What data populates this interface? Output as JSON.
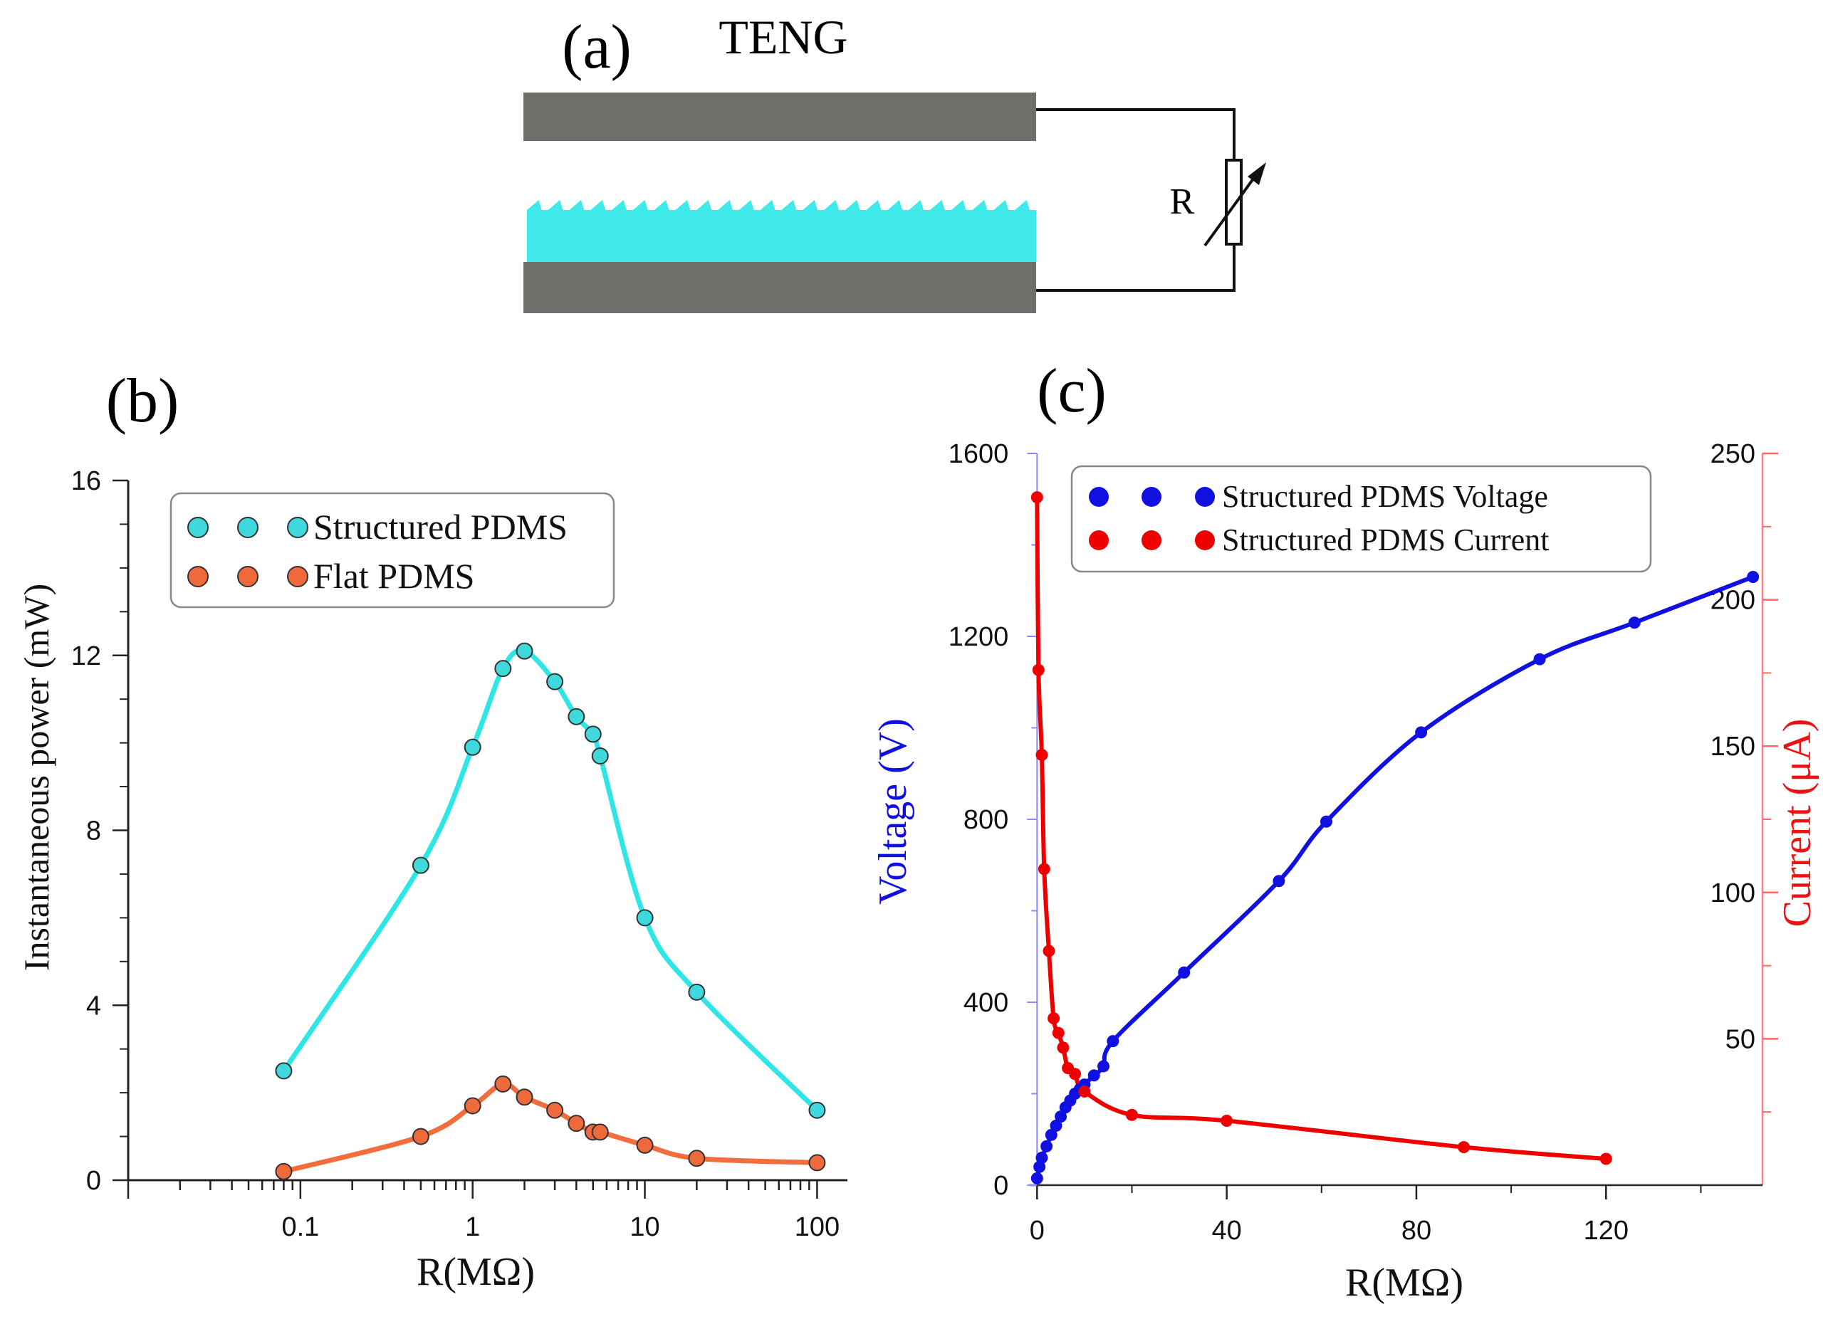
{
  "panel_a": {
    "label": "(a)",
    "title": "TENG",
    "resistor_label": "R",
    "colors": {
      "electrode": "#6f6e6b",
      "pdms": "#40eaea",
      "wire": "#111111"
    }
  },
  "chart_data": [
    {
      "id": "b",
      "panel_label": "(b)",
      "type": "line",
      "xscale": "log",
      "xlabel": "R(MΩ)",
      "ylabel": "Instantaneous power (mW)",
      "xlim": [
        0.01,
        150
      ],
      "ylim": [
        0,
        16
      ],
      "xticks": [
        0.1,
        1,
        10,
        100
      ],
      "xtick_labels": [
        "0.1",
        "1",
        "10",
        "100"
      ],
      "yticks": [
        0,
        4,
        8,
        12,
        16
      ],
      "ytick_labels": [
        "0",
        "4",
        "8",
        "12",
        "16"
      ],
      "legend_position": "top-left",
      "series": [
        {
          "name": "Structured PDMS",
          "color": "#2ee6e6",
          "marker_fill": "#3fd8dc",
          "x": [
            0.08,
            0.5,
            1.0,
            1.5,
            2.0,
            3.0,
            4.0,
            5.0,
            5.5,
            10,
            20,
            100
          ],
          "y": [
            2.5,
            7.2,
            9.9,
            11.7,
            12.1,
            11.4,
            10.6,
            10.2,
            9.7,
            6.0,
            4.3,
            1.6
          ]
        },
        {
          "name": "Flat PDMS",
          "color": "#f26d3d",
          "marker_fill": "#ee6a3c",
          "x": [
            0.08,
            0.5,
            1.0,
            1.5,
            2.0,
            3.0,
            4.0,
            5.0,
            5.5,
            10,
            20,
            100
          ],
          "y": [
            0.2,
            1.0,
            1.7,
            2.2,
            1.9,
            1.6,
            1.3,
            1.1,
            1.1,
            0.8,
            0.5,
            0.4
          ]
        }
      ]
    },
    {
      "id": "c",
      "panel_label": "(c)",
      "type": "line",
      "xscale": "linear",
      "xlabel": "R(MΩ)",
      "ylabel_left": "Voltage (V)",
      "ylabel_right": "Current (μA)",
      "xlim": [
        -2,
        153
      ],
      "ylim_left": [
        0,
        1600
      ],
      "ylim_right": [
        0,
        250
      ],
      "xticks": [
        0,
        40,
        80,
        120
      ],
      "xtick_labels": [
        "0",
        "40",
        "80",
        "120"
      ],
      "yticks_left": [
        0,
        400,
        800,
        1200,
        1600
      ],
      "ytick_labels_left": [
        "0",
        "400",
        "800",
        "1200",
        "1600"
      ],
      "yticks_right": [
        50,
        100,
        150,
        200,
        250
      ],
      "ytick_labels_right": [
        "50",
        "100",
        "150",
        "200",
        "250"
      ],
      "legend_position": "top-center",
      "series": [
        {
          "name": "Structured PDMS Voltage",
          "axis": "left",
          "color": "#1010e0",
          "x": [
            0,
            0.5,
            1,
            2,
            3,
            4,
            5,
            6,
            7,
            8,
            9,
            10,
            12,
            14,
            16,
            31,
            51,
            61,
            81,
            106,
            126,
            151
          ],
          "y": [
            15,
            40,
            60,
            85,
            110,
            130,
            150,
            170,
            185,
            200,
            210,
            220,
            240,
            260,
            315,
            465,
            665,
            795,
            990,
            1150,
            1230,
            1330
          ]
        },
        {
          "name": "Structured PDMS Current",
          "axis": "right",
          "color": "#ee0000",
          "x": [
            0,
            0.3,
            1,
            1.5,
            2.5,
            3.5,
            4.5,
            5.5,
            6.5,
            8,
            10,
            20,
            40,
            90,
            120
          ],
          "y": [
            235,
            176,
            147,
            108,
            80,
            57,
            52,
            47,
            40,
            38,
            32,
            24,
            22,
            13,
            9
          ]
        }
      ]
    }
  ]
}
